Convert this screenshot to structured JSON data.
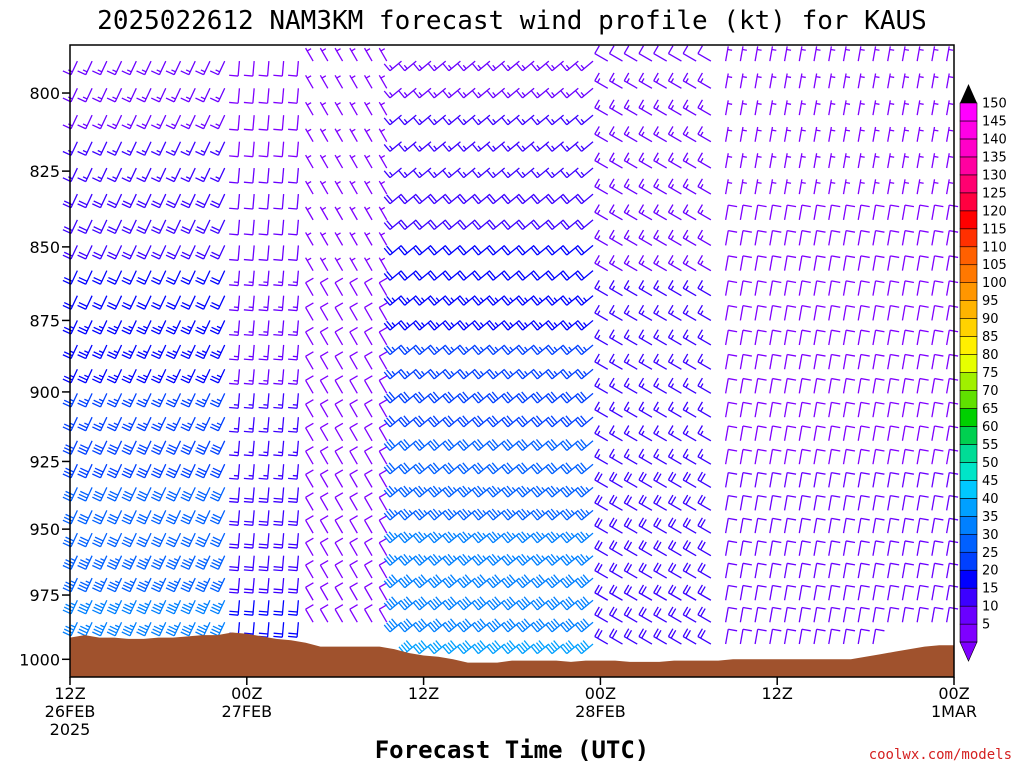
{
  "chart_data": {
    "type": "wind-barb",
    "title": "2025022612 NAM3KM forecast wind profile (kt) for KAUS",
    "xlabel": "Forecast Time (UTC)",
    "ylabel": "",
    "credit": "coolwx.com/models",
    "y_scale": "pressure (inverted)",
    "ylim": [
      1007,
      785
    ],
    "y_ticks": [
      800,
      825,
      850,
      875,
      900,
      925,
      950,
      975,
      1000
    ],
    "x_range_hours": [
      0,
      60
    ],
    "x_ticks": [
      {
        "hour": 0,
        "lines": [
          "12Z",
          "26FEB",
          "2025"
        ]
      },
      {
        "hour": 12,
        "lines": [
          "00Z",
          "27FEB"
        ]
      },
      {
        "hour": 24,
        "lines": [
          "12Z"
        ]
      },
      {
        "hour": 36,
        "lines": [
          "00Z",
          "28FEB"
        ]
      },
      {
        "hour": 48,
        "lines": [
          "12Z"
        ]
      },
      {
        "hour": 60,
        "lines": [
          "00Z",
          "1MAR"
        ]
      }
    ],
    "colorbar": {
      "values": [
        5,
        10,
        15,
        20,
        25,
        30,
        35,
        40,
        45,
        50,
        55,
        60,
        65,
        70,
        75,
        80,
        85,
        90,
        95,
        100,
        105,
        110,
        115,
        120,
        125,
        130,
        135,
        140,
        145,
        150
      ],
      "colors": [
        "#7f00ff",
        "#6a00ff",
        "#3c00ff",
        "#0000ff",
        "#0040ff",
        "#0060ff",
        "#0080ff",
        "#00a0ff",
        "#00c8ff",
        "#00e5c8",
        "#00dc96",
        "#00d050",
        "#00d000",
        "#60e000",
        "#a0f000",
        "#e6ff00",
        "#fff000",
        "#ffd200",
        "#ffb400",
        "#ff9600",
        "#ff7800",
        "#ff6000",
        "#ff3000",
        "#ff0000",
        "#ff0040",
        "#ff0070",
        "#ff00a0",
        "#ff00c8",
        "#ff00e6",
        "#ff00ff"
      ]
    },
    "surface_pressure": {
      "hours": [
        0,
        1,
        2,
        3,
        4,
        5,
        6,
        7,
        8,
        9,
        10,
        11,
        12,
        13,
        14,
        15,
        16,
        17,
        18,
        19,
        20,
        21,
        22,
        23,
        24,
        25,
        26,
        27,
        28,
        29,
        30,
        31,
        32,
        33,
        34,
        35,
        36,
        37,
        38,
        39,
        40,
        41,
        42,
        43,
        44,
        45,
        46,
        47,
        48,
        49,
        50,
        51,
        52,
        53,
        54,
        55,
        56,
        57,
        58,
        59,
        60
      ],
      "values": [
        991.5,
        990.5,
        991.5,
        991.5,
        992,
        992,
        991.5,
        991.5,
        991,
        990.5,
        990.5,
        989.5,
        990,
        991,
        992,
        992.5,
        993.5,
        995,
        995,
        995,
        995,
        995,
        996,
        997.5,
        998.5,
        999,
        1000,
        1001.3,
        1001.3,
        1001.3,
        1000.5,
        1000.5,
        1000.5,
        1000.5,
        1001,
        1000.5,
        1000.5,
        1000.5,
        1001,
        1001,
        1001,
        1000.5,
        1000.5,
        1000.5,
        1000.5,
        1000,
        1000,
        1000,
        1000,
        1000,
        1000,
        1000,
        1000,
        1000,
        999,
        998,
        997,
        996,
        995,
        994.5,
        994.5
      ]
    },
    "wind_regimes": [
      {
        "hour_start": 0,
        "hour_end": 11,
        "levels_hpa": [
          785,
          1000
        ],
        "direction_deg": 205,
        "speed_kt_top": 12,
        "speed_kt_bottom": 38
      },
      {
        "hour_start": 11,
        "hour_end": 16,
        "levels_hpa": [
          785,
          1000
        ],
        "direction_deg": 185,
        "speed_kt_top": 8,
        "speed_kt_bottom": 22
      },
      {
        "hour_start": 16,
        "hour_end": 22,
        "levels_hpa": [
          785,
          1000
        ],
        "direction_deg": 330,
        "speed_kt_top": 6,
        "speed_kt_bottom": 10
      },
      {
        "hour_start": 22,
        "hour_end": 36,
        "levels_hpa": [
          785,
          1000
        ],
        "direction_deg": 230,
        "speed_kt_top": 12,
        "speed_kt_bottom": 42
      },
      {
        "hour_start": 36,
        "hour_end": 44,
        "levels_hpa": [
          785,
          1000
        ],
        "direction_deg": 300,
        "speed_kt_top": 12,
        "speed_kt_bottom": 20
      },
      {
        "hour_start": 44,
        "hour_end": 60,
        "levels_hpa": [
          785,
          1000
        ],
        "direction_deg": 10,
        "speed_kt_top": 6,
        "speed_kt_bottom": 12
      }
    ]
  }
}
